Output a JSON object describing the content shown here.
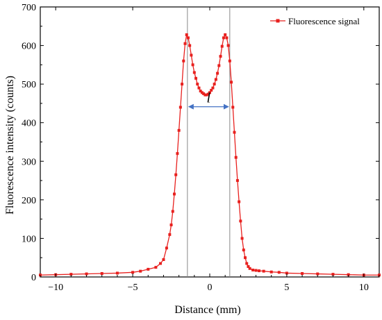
{
  "chart_data": {
    "type": "line",
    "xlabel": "Distance (mm)",
    "ylabel": "Fluorescence intensity (counts)",
    "xlim": [
      -11,
      11
    ],
    "ylim": [
      0,
      700
    ],
    "xticks": [
      -10,
      -5,
      0,
      5,
      10
    ],
    "xtick_labels": [
      "−10",
      "−5",
      "0",
      "5",
      "10"
    ],
    "yticks": [
      0,
      100,
      200,
      300,
      400,
      500,
      600,
      700
    ],
    "ytick_labels": [
      "0",
      "100",
      "200",
      "300",
      "400",
      "500",
      "600",
      "700"
    ],
    "grid": false,
    "legend_position": "top-right",
    "series": [
      {
        "name": "Fluorescence signal",
        "color": "#e8201e",
        "marker": "square",
        "x": [
          -11,
          -10,
          -9,
          -8,
          -7,
          -6,
          -5,
          -4.5,
          -4,
          -3.5,
          -3.2,
          -3.0,
          -2.8,
          -2.6,
          -2.5,
          -2.4,
          -2.3,
          -2.2,
          -2.1,
          -2.0,
          -1.9,
          -1.8,
          -1.7,
          -1.6,
          -1.5,
          -1.4,
          -1.3,
          -1.2,
          -1.1,
          -1.0,
          -0.9,
          -0.8,
          -0.7,
          -0.6,
          -0.5,
          -0.4,
          -0.3,
          -0.2,
          -0.1,
          0.0,
          0.1,
          0.2,
          0.3,
          0.4,
          0.5,
          0.6,
          0.7,
          0.8,
          0.9,
          1.0,
          1.1,
          1.2,
          1.3,
          1.4,
          1.5,
          1.6,
          1.7,
          1.8,
          1.9,
          2.0,
          2.1,
          2.2,
          2.3,
          2.4,
          2.5,
          2.6,
          2.8,
          3.0,
          3.2,
          3.5,
          4,
          4.5,
          5,
          6,
          7,
          8,
          9,
          10,
          11
        ],
        "y": [
          5,
          6,
          7,
          8,
          9,
          10,
          12,
          15,
          20,
          25,
          35,
          45,
          75,
          110,
          135,
          170,
          215,
          265,
          320,
          380,
          440,
          500,
          560,
          605,
          628,
          620,
          600,
          575,
          550,
          530,
          515,
          500,
          490,
          482,
          478,
          475,
          472,
          472,
          474,
          478,
          484,
          490,
          500,
          512,
          528,
          548,
          572,
          598,
          620,
          628,
          620,
          600,
          560,
          505,
          440,
          375,
          310,
          250,
          195,
          145,
          100,
          70,
          50,
          35,
          27,
          22,
          18,
          17,
          16,
          15,
          13,
          12,
          10,
          9,
          8,
          7,
          6,
          5,
          5
        ]
      }
    ],
    "vlines": [
      -1.45,
      1.3
    ],
    "annotation": {
      "text": "l",
      "x_start": -1.45,
      "x_end": 1.3,
      "y": 400,
      "arrow_color": "#4472c4"
    }
  }
}
